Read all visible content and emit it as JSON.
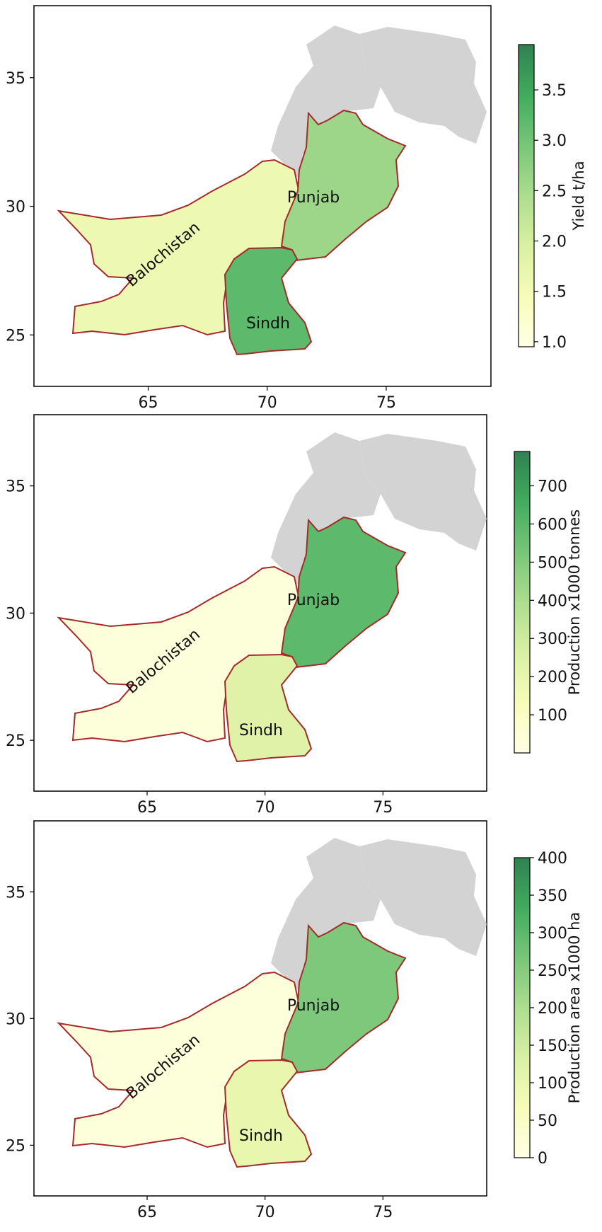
{
  "panels": [
    {
      "id": "yield",
      "colorbar": {
        "label": "Yield t/ha",
        "min": 0.95,
        "max": 3.95,
        "ticks": [
          1.0,
          1.5,
          2.0,
          2.5,
          3.0,
          3.5
        ],
        "tick_labels": [
          "1.0",
          "1.5",
          "2.0",
          "2.5",
          "3.0",
          "3.5"
        ]
      },
      "region_levels": {
        "Balochistan": 0.22,
        "Punjab": 0.55,
        "Sindh": 0.75
      }
    },
    {
      "id": "production",
      "colorbar": {
        "label": "Production x1000 tonnes",
        "min": 0,
        "max": 790,
        "ticks": [
          100,
          200,
          300,
          400,
          500,
          600,
          700
        ],
        "tick_labels": [
          "100",
          "200",
          "300",
          "400",
          "500",
          "600",
          "700"
        ]
      },
      "region_levels": {
        "Balochistan": 0.04,
        "Punjab": 0.75,
        "Sindh": 0.3
      }
    },
    {
      "id": "area",
      "colorbar": {
        "label": "Production area x1000 ha",
        "min": 0,
        "max": 400,
        "ticks": [
          0,
          50,
          100,
          150,
          200,
          250,
          300,
          350,
          400
        ],
        "tick_labels": [
          "0",
          "50",
          "100",
          "150",
          "200",
          "250",
          "300",
          "350",
          "400"
        ]
      },
      "region_levels": {
        "Balochistan": 0.04,
        "Punjab": 0.65,
        "Sindh": 0.25
      }
    }
  ],
  "axes": {
    "x_ticks": [
      65,
      70,
      75
    ],
    "x_tick_labels": [
      "65",
      "70",
      "75"
    ],
    "y_ticks": [
      25,
      30,
      35
    ],
    "y_tick_labels": [
      "25",
      "30",
      "35"
    ]
  },
  "region_labels": [
    "Balochistan",
    "Punjab",
    "Sindh"
  ],
  "colormap": "YlGn",
  "colors": {
    "border": "#a52a2a",
    "no_data": "#d3d3d3",
    "cmap_stops": [
      "#ffffe5",
      "#f7fcb9",
      "#d9f0a3",
      "#addd8e",
      "#78c679",
      "#41ab5d",
      "#2f8150"
    ]
  }
}
